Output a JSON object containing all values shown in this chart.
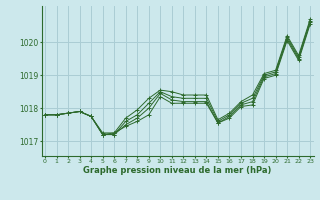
{
  "background_color": "#cce8ec",
  "grid_color": "#aacdd4",
  "line_color": "#2d6a2d",
  "x_ticks": [
    0,
    1,
    2,
    3,
    4,
    5,
    6,
    7,
    8,
    9,
    10,
    11,
    12,
    13,
    14,
    15,
    16,
    17,
    18,
    19,
    20,
    21,
    22,
    23
  ],
  "y_ticks": [
    1017,
    1018,
    1019,
    1020
  ],
  "ylim": [
    1016.55,
    1021.1
  ],
  "xlim": [
    -0.3,
    23.3
  ],
  "xlabel": "Graphe pression niveau de la mer (hPa)",
  "series": [
    [
      1017.8,
      1017.8,
      1017.85,
      1017.9,
      1017.75,
      1017.25,
      1017.25,
      1017.45,
      1017.6,
      1017.8,
      1018.35,
      1018.15,
      1018.15,
      1018.15,
      1018.15,
      1017.55,
      1017.7,
      1018.05,
      1018.1,
      1018.9,
      1019.0,
      1020.05,
      1019.45,
      1020.55
    ],
    [
      1017.8,
      1017.8,
      1017.85,
      1017.9,
      1017.75,
      1017.2,
      1017.2,
      1017.5,
      1017.7,
      1018.0,
      1018.45,
      1018.25,
      1018.2,
      1018.2,
      1018.2,
      1017.55,
      1017.75,
      1018.1,
      1018.2,
      1018.95,
      1019.05,
      1020.1,
      1019.5,
      1020.6
    ],
    [
      1017.8,
      1017.8,
      1017.85,
      1017.9,
      1017.75,
      1017.2,
      1017.2,
      1017.6,
      1017.8,
      1018.15,
      1018.5,
      1018.35,
      1018.3,
      1018.3,
      1018.3,
      1017.6,
      1017.8,
      1018.15,
      1018.3,
      1019.0,
      1019.1,
      1020.15,
      1019.55,
      1020.65
    ],
    [
      1017.8,
      1017.8,
      1017.85,
      1017.9,
      1017.75,
      1017.2,
      1017.25,
      1017.7,
      1017.95,
      1018.3,
      1018.55,
      1018.5,
      1018.4,
      1018.4,
      1018.4,
      1017.65,
      1017.85,
      1018.2,
      1018.4,
      1019.05,
      1019.15,
      1020.2,
      1019.6,
      1020.7
    ]
  ]
}
